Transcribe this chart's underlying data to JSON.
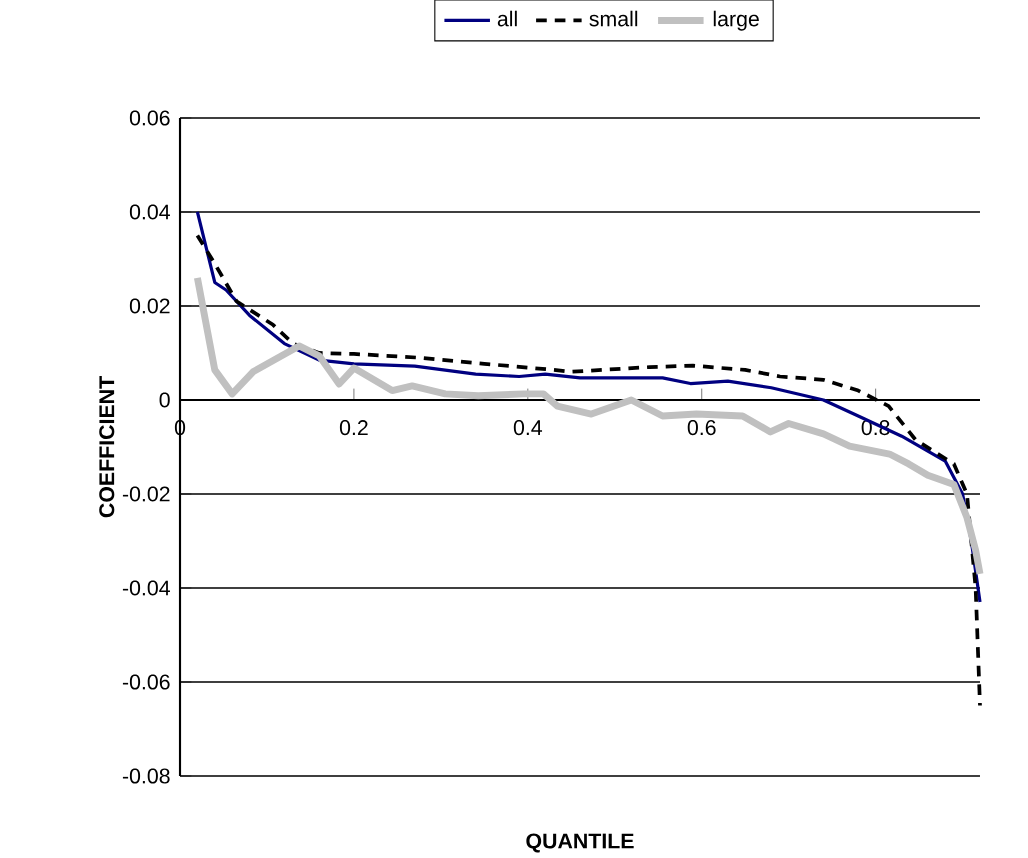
{
  "chart_data": {
    "type": "line",
    "xlabel": "QUANTILE",
    "ylabel": "COEFFICIENT",
    "xlim": [
      0,
      0.92
    ],
    "xticks": [
      0,
      0.2,
      0.4,
      0.6,
      0.8
    ],
    "ylim": [
      -0.08,
      0.06
    ],
    "yticks": [
      -0.08,
      -0.06,
      -0.04,
      -0.02,
      0,
      0.02,
      0.04,
      0.06
    ],
    "grid": "y",
    "legend": "top",
    "marker": "none",
    "series": [
      {
        "name": "all",
        "color": "#000080",
        "line_style": "solid",
        "x": [
          0.02,
          0.04,
          0.053,
          0.08,
          0.12,
          0.16,
          0.2,
          0.27,
          0.34,
          0.39,
          0.42,
          0.46,
          0.555,
          0.587,
          0.63,
          0.68,
          0.74,
          0.78,
          0.83,
          0.88,
          0.9,
          0.91,
          0.92
        ],
        "values": [
          0.04,
          0.025,
          0.0234,
          0.018,
          0.012,
          0.0085,
          0.0077,
          0.0072,
          0.0055,
          0.005,
          0.0055,
          0.0047,
          0.0047,
          0.0035,
          0.004,
          0.0026,
          0,
          -0.0034,
          -0.0077,
          -0.013,
          -0.02,
          -0.03,
          -0.043
        ]
      },
      {
        "name": "small",
        "color": "#000000",
        "line_style": "dashed",
        "x": [
          0.02,
          0.04,
          0.065,
          0.107,
          0.13,
          0.16,
          0.2,
          0.275,
          0.35,
          0.43,
          0.45,
          0.54,
          0.59,
          0.65,
          0.69,
          0.74,
          0.78,
          0.815,
          0.846,
          0.89,
          0.905,
          0.915,
          0.92
        ],
        "values": [
          0.035,
          0.029,
          0.021,
          0.016,
          0.012,
          0.01,
          0.0098,
          0.009,
          0.0077,
          0.0064,
          0.006,
          0.007,
          0.0073,
          0.0064,
          0.005,
          0.0043,
          0.002,
          -0.0013,
          -0.0085,
          -0.0136,
          -0.02,
          -0.04,
          -0.065
        ]
      },
      {
        "name": "large",
        "color": "#c0c0c0",
        "line_style": "solid",
        "x": [
          0.02,
          0.04,
          0.06,
          0.084,
          0.137,
          0.16,
          0.183,
          0.2,
          0.244,
          0.267,
          0.305,
          0.343,
          0.395,
          0.418,
          0.434,
          0.473,
          0.519,
          0.555,
          0.594,
          0.647,
          0.679,
          0.7,
          0.74,
          0.77,
          0.816,
          0.838,
          0.86,
          0.89,
          0.905,
          0.915,
          0.92
        ],
        "values": [
          0.026,
          0.0064,
          0.0013,
          0.006,
          0.0115,
          0.0094,
          0.0034,
          0.0068,
          0.002,
          0.003,
          0.0013,
          0.0009,
          0.0013,
          0.0013,
          -0.0013,
          -0.003,
          0,
          -0.0034,
          -0.003,
          -0.0034,
          -0.0068,
          -0.005,
          -0.0072,
          -0.0098,
          -0.0115,
          -0.0136,
          -0.016,
          -0.018,
          -0.025,
          -0.032,
          -0.037
        ]
      }
    ]
  }
}
